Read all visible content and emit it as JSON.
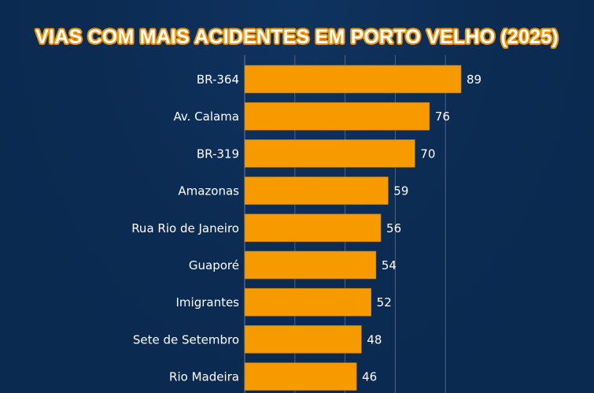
{
  "chart_data": {
    "type": "bar",
    "orientation": "horizontal",
    "title": "VIAS COM MAIS ACIDENTES EM PORTO VELHO (2025)",
    "categories": [
      "BR-364",
      "Av. Calama",
      "BR-319",
      "Amazonas",
      "Rua Rio de Janeiro",
      "Guaporé",
      "Imigrantes",
      "Sete de Setembro",
      "Rio Madeira"
    ],
    "values": [
      89,
      76,
      70,
      59,
      56,
      54,
      52,
      48,
      46
    ],
    "xlabel": "",
    "ylabel": "",
    "xlim": [
      0,
      144
    ],
    "grid": true,
    "colors": {
      "bar": "#f79a00",
      "background": "#0b2b52",
      "text": "#ffffff",
      "grid": "#4a6385"
    }
  }
}
